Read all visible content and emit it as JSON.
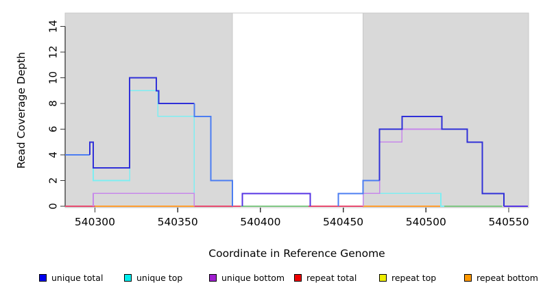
{
  "axes": {
    "xlabel": "Coordinate in Reference Genome",
    "ylabel": "Read Coverage Depth"
  },
  "chart_data": {
    "type": "line",
    "subtype": "step-coverage",
    "title": "",
    "xlabel": "Coordinate in Reference Genome",
    "ylabel": "Read Coverage Depth",
    "xlim": [
      540282,
      540562
    ],
    "ylim": [
      0,
      15
    ],
    "x_ticks": [
      540300,
      540350,
      540400,
      540450,
      540500,
      540550
    ],
    "y_ticks": [
      0,
      2,
      4,
      6,
      8,
      10,
      12,
      14
    ],
    "grid": false,
    "background_color": "#ffffff",
    "shaded_regions": [
      {
        "from": 540282,
        "to": 540383,
        "color": "#d9d9d9"
      },
      {
        "from": 540462,
        "to": 540562,
        "color": "#d9d9d9"
      }
    ],
    "legend": {
      "position": "bottom",
      "items": [
        {
          "label": "unique total",
          "color": "#0000ee"
        },
        {
          "label": "unique top",
          "color": "#00eeee"
        },
        {
          "label": "unique bottom",
          "color": "#a020d0"
        },
        {
          "label": "repeat total",
          "color": "#ee0000"
        },
        {
          "label": "repeat top",
          "color": "#eeee00"
        },
        {
          "label": "repeat bottom",
          "color": "#ff9900"
        }
      ]
    },
    "series": [
      {
        "name": "repeat total",
        "color": "#e84a6f",
        "width": 1.6,
        "polylines": [
          {
            "points": [
              [
                540282,
                0
              ],
              [
                540388,
                0
              ]
            ]
          },
          {
            "points": [
              [
                540429,
                0
              ],
              [
                540462,
                0
              ]
            ]
          }
        ]
      },
      {
        "name": "baseline-blend-green",
        "color": "#7fc783",
        "width": 1.6,
        "polylines": [
          {
            "points": [
              [
                540388,
                0
              ],
              [
                540429,
                0
              ]
            ]
          },
          {
            "points": [
              [
                540511,
                0
              ],
              [
                540546,
                0
              ]
            ]
          }
        ]
      },
      {
        "name": "repeat bottom",
        "color": "#ff9d2e",
        "width": 2,
        "polylines": [
          {
            "points": [
              [
                540300,
                0
              ],
              [
                540360,
                0
              ]
            ]
          },
          {
            "points": [
              [
                540462,
                0
              ],
              [
                540509,
                0
              ]
            ]
          }
        ]
      },
      {
        "name": "unique top",
        "color": "#7deef2",
        "width": 1.6,
        "polylines": [
          {
            "points": [
              [
                540299,
                3
              ],
              [
                540299,
                2
              ],
              [
                540321,
                2
              ],
              [
                540321,
                9
              ],
              [
                540338,
                9
              ],
              [
                540338,
                7
              ],
              [
                540360,
                7
              ],
              [
                540360,
                0
              ]
            ]
          },
          {
            "points": [
              [
                540447,
                0
              ],
              [
                540447,
                1
              ],
              [
                540509,
                1
              ],
              [
                540509,
                0
              ],
              [
                540511,
                0
              ]
            ]
          }
        ]
      },
      {
        "name": "unique bottom",
        "color": "#c687ea",
        "width": 1.6,
        "polylines": [
          {
            "points": [
              [
                540299,
                0
              ],
              [
                540299,
                1
              ],
              [
                540360,
                1
              ],
              [
                540360,
                0
              ]
            ]
          },
          {
            "points": [
              [
                540389,
                0
              ],
              [
                540389,
                1
              ],
              [
                540430,
                1
              ],
              [
                540430,
                0
              ]
            ]
          },
          {
            "points": [
              [
                540462,
                0
              ],
              [
                540462,
                1
              ],
              [
                540472,
                1
              ],
              [
                540472,
                5
              ],
              [
                540485.5,
                5
              ],
              [
                540485.5,
                6
              ],
              [
                540525,
                6
              ],
              [
                540525,
                5
              ],
              [
                540534,
                5
              ],
              [
                540534,
                1
              ],
              [
                540547,
                1
              ],
              [
                540547,
                0
              ],
              [
                540561.5,
                0
              ]
            ]
          }
        ]
      },
      {
        "name": "unique total",
        "color": "#3030d8",
        "width": 2,
        "polylines": [
          {
            "color": "#4b7df2",
            "points": [
              [
                540282,
                4
              ],
              [
                540297,
                4
              ]
            ]
          },
          {
            "color": "#3030d8",
            "points": [
              [
                540297,
                4
              ],
              [
                540297,
                5
              ],
              [
                540299,
                5
              ],
              [
                540299,
                3
              ],
              [
                540321,
                3
              ],
              [
                540321,
                10
              ],
              [
                540337,
                10
              ],
              [
                540337,
                9
              ],
              [
                540338.5,
                9
              ],
              [
                540338.5,
                8
              ],
              [
                540360,
                8
              ]
            ]
          },
          {
            "color": "#4b7df2",
            "points": [
              [
                540360,
                8
              ],
              [
                540360,
                7
              ],
              [
                540370,
                7
              ],
              [
                540370,
                2
              ],
              [
                540383,
                2
              ],
              [
                540383,
                0
              ]
            ]
          },
          {
            "color": "#5634e4",
            "points": [
              [
                540389,
                0
              ],
              [
                540389,
                1
              ],
              [
                540430,
                1
              ],
              [
                540430,
                0
              ]
            ]
          },
          {
            "color": "#4b7df2",
            "points": [
              [
                540447,
                0
              ],
              [
                540447,
                1
              ],
              [
                540462,
                1
              ],
              [
                540462,
                2
              ],
              [
                540472,
                2
              ]
            ]
          },
          {
            "color": "#3030d8",
            "points": [
              [
                540472,
                2
              ],
              [
                540472,
                6
              ],
              [
                540485.5,
                6
              ],
              [
                540485.5,
                7
              ],
              [
                540509.5,
                7
              ],
              [
                540509.5,
                6
              ],
              [
                540525,
                6
              ],
              [
                540525,
                5
              ],
              [
                540534,
                5
              ],
              [
                540534,
                1
              ],
              [
                540547,
                1
              ],
              [
                540547,
                0
              ]
            ]
          },
          {
            "color": "#5634e4",
            "points": [
              [
                540547,
                0
              ],
              [
                540561.5,
                0
              ]
            ]
          }
        ]
      }
    ]
  }
}
